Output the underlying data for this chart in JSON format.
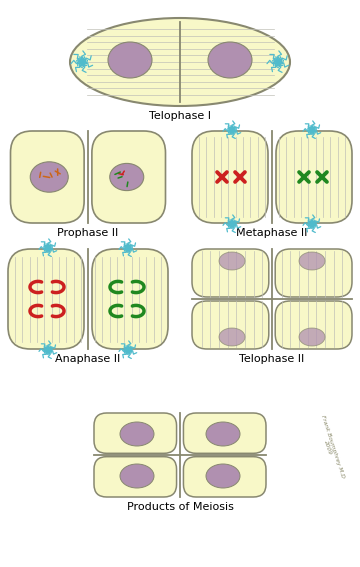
{
  "bg": "white",
  "cell_fill": "#f8f8c8",
  "cell_edge": "#888870",
  "nuc_fill": "#b090b0",
  "spindle_c": "#c0c0b8",
  "aster_c": "#50bbcc",
  "red": "#cc2020",
  "green": "#208820",
  "orange": "#cc6618",
  "label_t1": "Telophase I",
  "label_p2": "Prophase II",
  "label_m2": "Metaphase II",
  "label_a2": "Anaphase II",
  "label_t2": "Telophase II",
  "label_pm": "Products of Meiosis",
  "credit": "Frank Boumphrey M.D\n2009"
}
